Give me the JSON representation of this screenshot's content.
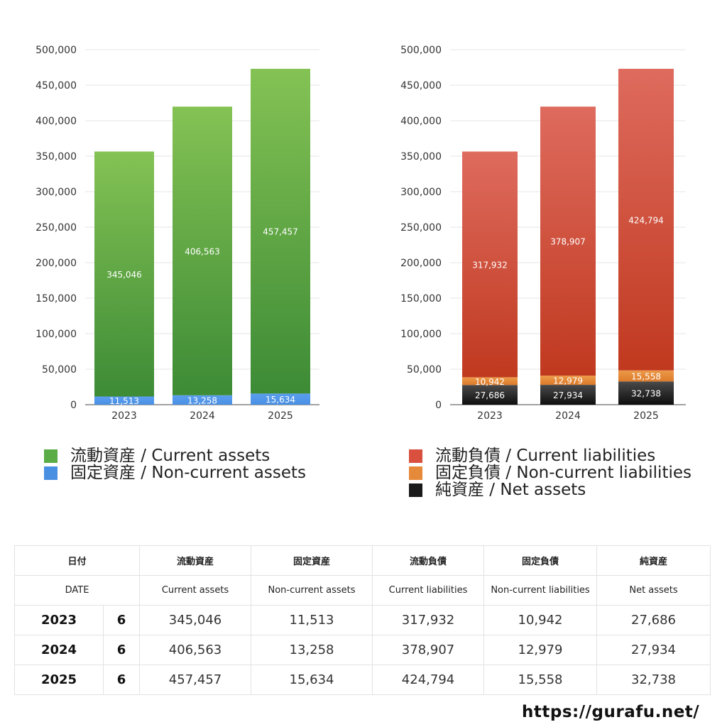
{
  "chart_data": [
    {
      "type": "bar",
      "stacked": true,
      "categories": [
        "2023",
        "2024",
        "2025"
      ],
      "ylim": [
        0,
        500000
      ],
      "yticks": [
        0,
        50000,
        100000,
        150000,
        200000,
        250000,
        300000,
        350000,
        400000,
        450000,
        500000
      ],
      "ytick_labels": [
        "0",
        "50,000",
        "100,000",
        "150,000",
        "200,000",
        "250,000",
        "300,000",
        "350,000",
        "400,000",
        "450,000",
        "500,000"
      ],
      "grid": true,
      "legend_position": "bottom",
      "series": [
        {
          "name": "固定資産 / Non-current assets",
          "values": [
            11513,
            13258,
            15634
          ],
          "labels": [
            "11,513",
            "13,258",
            "15,634"
          ],
          "color": "#4a90e2",
          "color_light": "#5a9ef0"
        },
        {
          "name": "流動資産 / Current assets",
          "values": [
            345046,
            406563,
            457457
          ],
          "labels": [
            "345,046",
            "406,563",
            "457,457"
          ],
          "color": "#3d8b36",
          "color_light": "#84c254"
        }
      ]
    },
    {
      "type": "bar",
      "stacked": true,
      "categories": [
        "2023",
        "2024",
        "2025"
      ],
      "ylim": [
        0,
        500000
      ],
      "yticks": [
        0,
        50000,
        100000,
        150000,
        200000,
        250000,
        300000,
        350000,
        400000,
        450000,
        500000
      ],
      "ytick_labels": [
        "0",
        "50,000",
        "100,000",
        "150,000",
        "200,000",
        "250,000",
        "300,000",
        "350,000",
        "400,000",
        "450,000",
        "500,000"
      ],
      "grid": true,
      "legend_position": "bottom",
      "series": [
        {
          "name": "純資産 / Net assets",
          "values": [
            27686,
            27934,
            32738
          ],
          "labels": [
            "27,686",
            "27,934",
            "32,738"
          ],
          "color": "#0e0e0e",
          "color_light": "#4a4a4a"
        },
        {
          "name": "固定負債 / Non-current liabilities",
          "values": [
            10942,
            12979,
            15558
          ],
          "labels": [
            "10,942",
            "12,979",
            "15,558"
          ],
          "color": "#dc7a2a",
          "color_light": "#ec9a48"
        },
        {
          "name": "流動負債 / Current liabilities",
          "values": [
            317932,
            378907,
            424794
          ],
          "labels": [
            "317,932",
            "378,907",
            "424,794"
          ],
          "color": "#c0391f",
          "color_light": "#de6b5e"
        }
      ]
    }
  ],
  "legend_assets": [
    {
      "label": "流動資産 / Current assets",
      "color": "#5aad45"
    },
    {
      "label": "固定資産 / Non-current assets",
      "color": "#4a90e2"
    }
  ],
  "legend_liab": [
    {
      "label": "流動負債 / Current liabilities",
      "color": "#d9503f"
    },
    {
      "label": "固定負債 / Non-current liabilities",
      "color": "#e5893a"
    },
    {
      "label": "純資産 / Net assets",
      "color": "#1a1a1a"
    }
  ],
  "table": {
    "header_jp": [
      "日付",
      "流動資産",
      "固定資産",
      "流動負債",
      "固定負債",
      "純資産"
    ],
    "header_en": [
      "DATE",
      "Current assets",
      "Non-current assets",
      "Current liabilities",
      "Non-current liabilities",
      "Net assets"
    ],
    "rows": [
      {
        "year": "2023",
        "month": "6",
        "values": [
          "345,046",
          "11,513",
          "317,932",
          "10,942",
          "27,686"
        ]
      },
      {
        "year": "2024",
        "month": "6",
        "values": [
          "406,563",
          "13,258",
          "378,907",
          "12,979",
          "27,934"
        ]
      },
      {
        "year": "2025",
        "month": "6",
        "values": [
          "457,457",
          "15,634",
          "424,794",
          "15,558",
          "32,738"
        ]
      }
    ]
  },
  "footer": {
    "url": "https://gurafu.net/"
  }
}
